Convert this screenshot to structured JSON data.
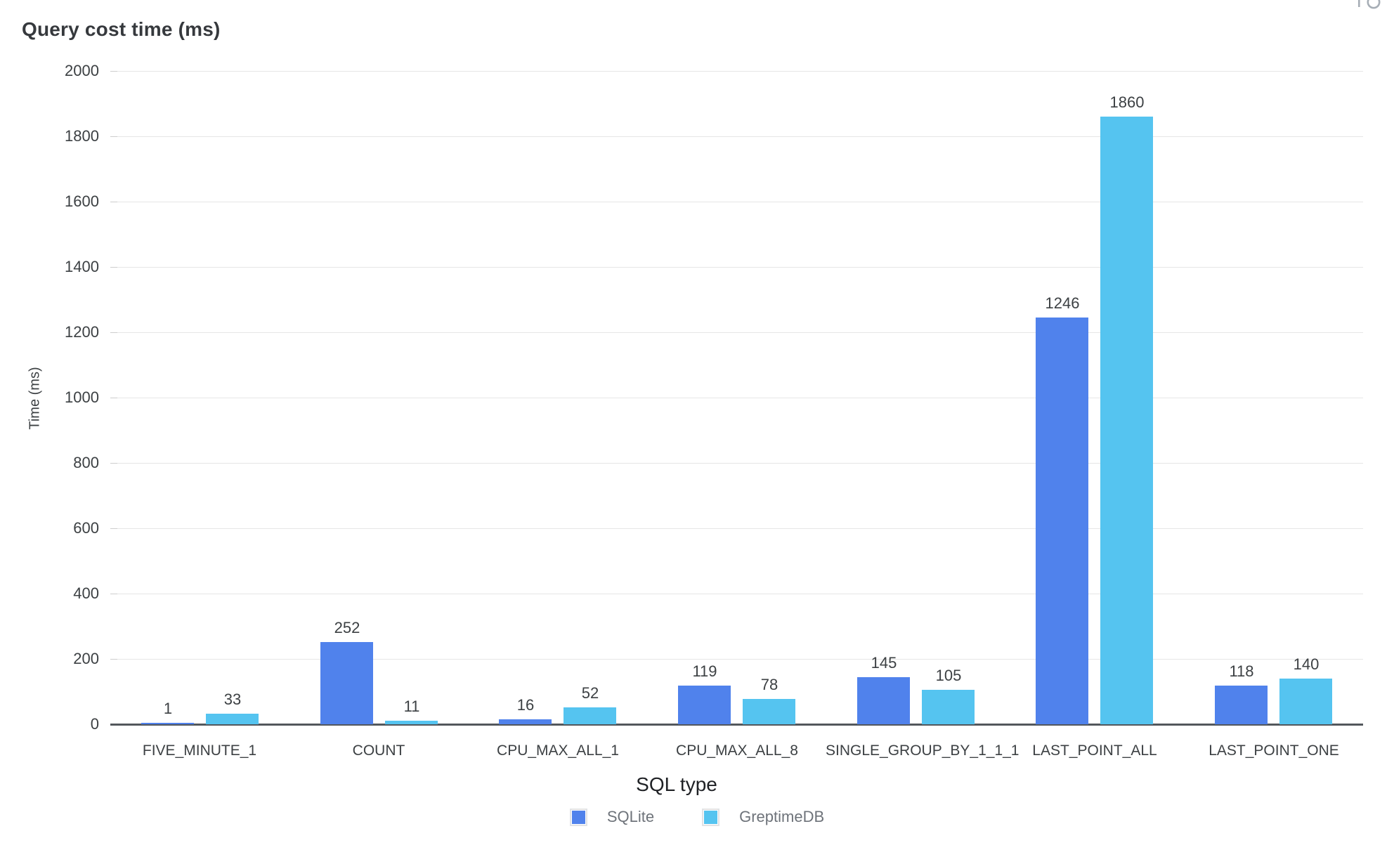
{
  "chart_data": {
    "type": "bar",
    "title": "Query cost time (ms)",
    "xlabel": "SQL type",
    "ylabel": "Time (ms)",
    "ylim": [
      0,
      2000
    ],
    "ytick_interval": 200,
    "yticks": [
      0,
      200,
      400,
      600,
      800,
      1000,
      1200,
      1400,
      1600,
      1800,
      2000
    ],
    "grid": true,
    "legend_position": "bottom",
    "bar_value_labels": true,
    "categories": [
      "FIVE_MINUTE_1",
      "COUNT",
      "CPU_MAX_ALL_1",
      "CPU_MAX_ALL_8",
      "SINGLE_GROUP_BY_1_1_1",
      "LAST_POINT_ALL",
      "LAST_POINT_ONE"
    ],
    "series": [
      {
        "name": "SQLite",
        "color": "#5082EC",
        "values": [
          1,
          252,
          16,
          119,
          145,
          1246,
          118
        ]
      },
      {
        "name": "GreptimeDB",
        "color": "#55C4F0",
        "values": [
          33,
          11,
          52,
          78,
          105,
          1860,
          140
        ]
      }
    ],
    "colors": {
      "grid": "#E6E6E6",
      "axis": "#53575C",
      "text": "#3C4043",
      "legend_text": "#6E737A",
      "title": "#36393D"
    }
  },
  "decorations": {
    "top_right_icon": "clipped-toolbar-icon"
  }
}
